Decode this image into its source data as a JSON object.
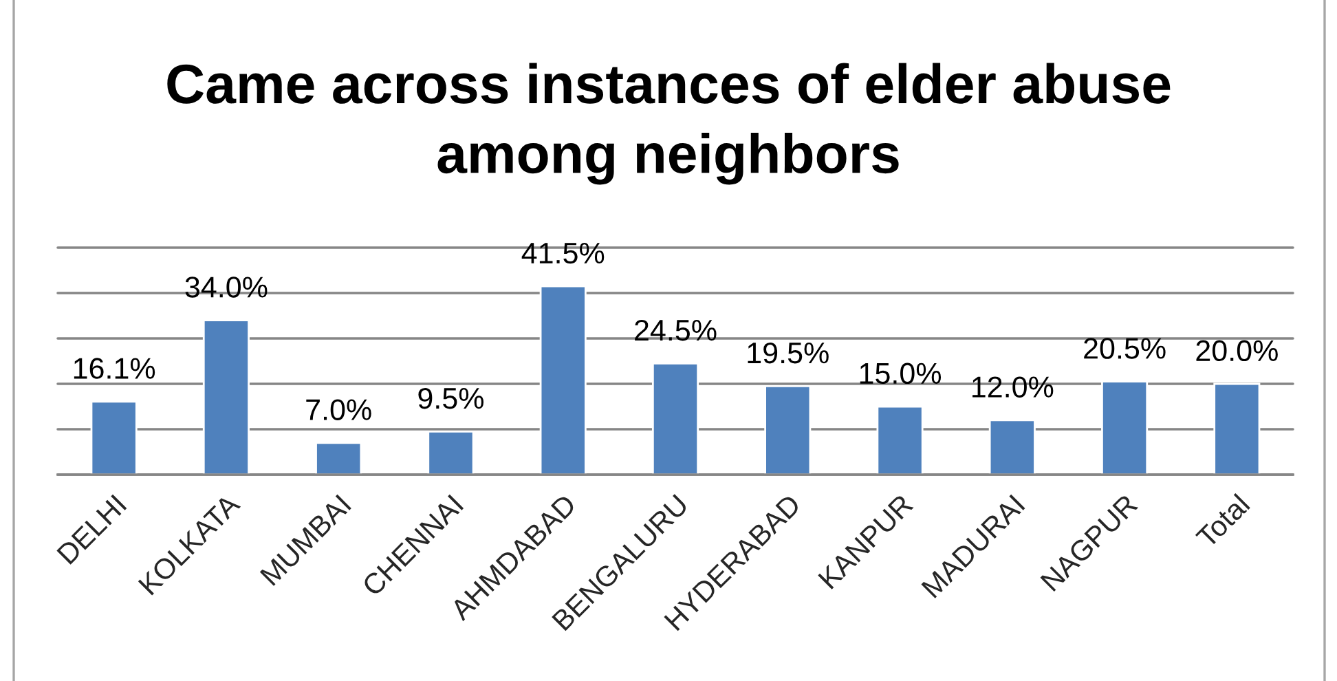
{
  "chart_data": {
    "type": "bar",
    "title": "Came across instances of elder abuse\namong neighbors",
    "categories": [
      "DELHI",
      "KOLKATA",
      "MUMBAI",
      "CHENNAI",
      "AHMDABAD",
      "BENGALURU",
      "HYDERABAD",
      "KANPUR",
      "MADURAI",
      "NAGPUR",
      "Total"
    ],
    "values": [
      16.1,
      34.0,
      7.0,
      9.5,
      41.5,
      24.5,
      19.5,
      15.0,
      12.0,
      20.5,
      20.0
    ],
    "value_labels": [
      "16.1%",
      "34.0%",
      "7.0%",
      "9.5%",
      "41.5%",
      "24.5%",
      "19.5%",
      "15.0%",
      "12.0%",
      "20.5%",
      "20.0%"
    ],
    "color": "#4f81bd",
    "ylim": [
      0,
      50
    ],
    "yticks": [
      {
        "value": 0,
        "label": null
      },
      {
        "value": 10,
        "label": null
      },
      {
        "value": 20,
        "label": null
      },
      {
        "value": 30,
        "label": null
      },
      {
        "value": 40,
        "label": null
      },
      {
        "value": 50,
        "label": null
      }
    ],
    "tick_labels": "x",
    "grid": "y"
  }
}
